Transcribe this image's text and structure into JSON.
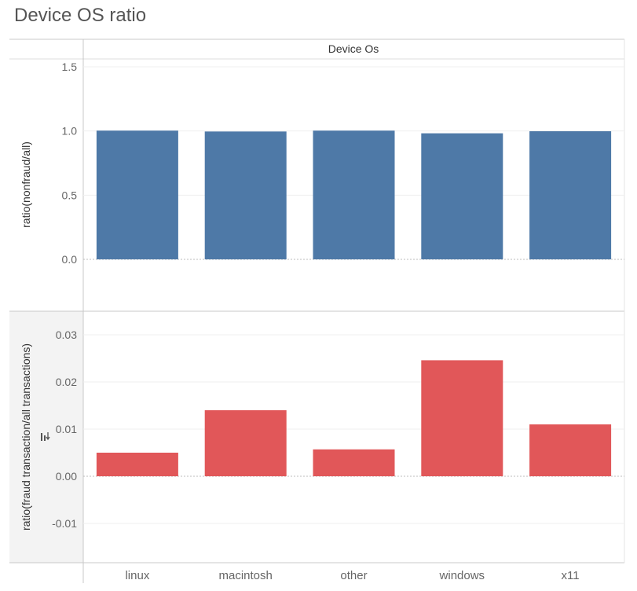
{
  "title": "Device OS ratio",
  "column_header": "Device Os",
  "colors": {
    "top": "#4e79a7",
    "bottom": "#e15759"
  },
  "chart_data": [
    {
      "type": "bar",
      "categories": [
        "linux",
        "macintosh",
        "other",
        "windows",
        "x11"
      ],
      "values": [
        1.003,
        0.996,
        1.003,
        0.982,
        0.998
      ],
      "ylabel": "ratio(nonfraud/all)",
      "ylim": [
        0.0,
        1.5
      ],
      "yticks": [
        0.0,
        0.5,
        1.0,
        1.5
      ],
      "ytick_labels": [
        "0.0",
        "0.5",
        "1.0",
        "1.5"
      ],
      "color": "#4e79a7"
    },
    {
      "type": "bar",
      "categories": [
        "linux",
        "macintosh",
        "other",
        "windows",
        "x11"
      ],
      "values": [
        0.005,
        0.014,
        0.0057,
        0.0246,
        0.011
      ],
      "ylabel": "ratio(fraud transaction/all transactions)",
      "ylim": [
        -0.01,
        0.03
      ],
      "yticks": [
        -0.01,
        0.0,
        0.01,
        0.02,
        0.03
      ],
      "ytick_labels": [
        "-0.01",
        "0.00",
        "0.01",
        "0.02",
        "0.03"
      ],
      "color": "#e15759"
    }
  ]
}
